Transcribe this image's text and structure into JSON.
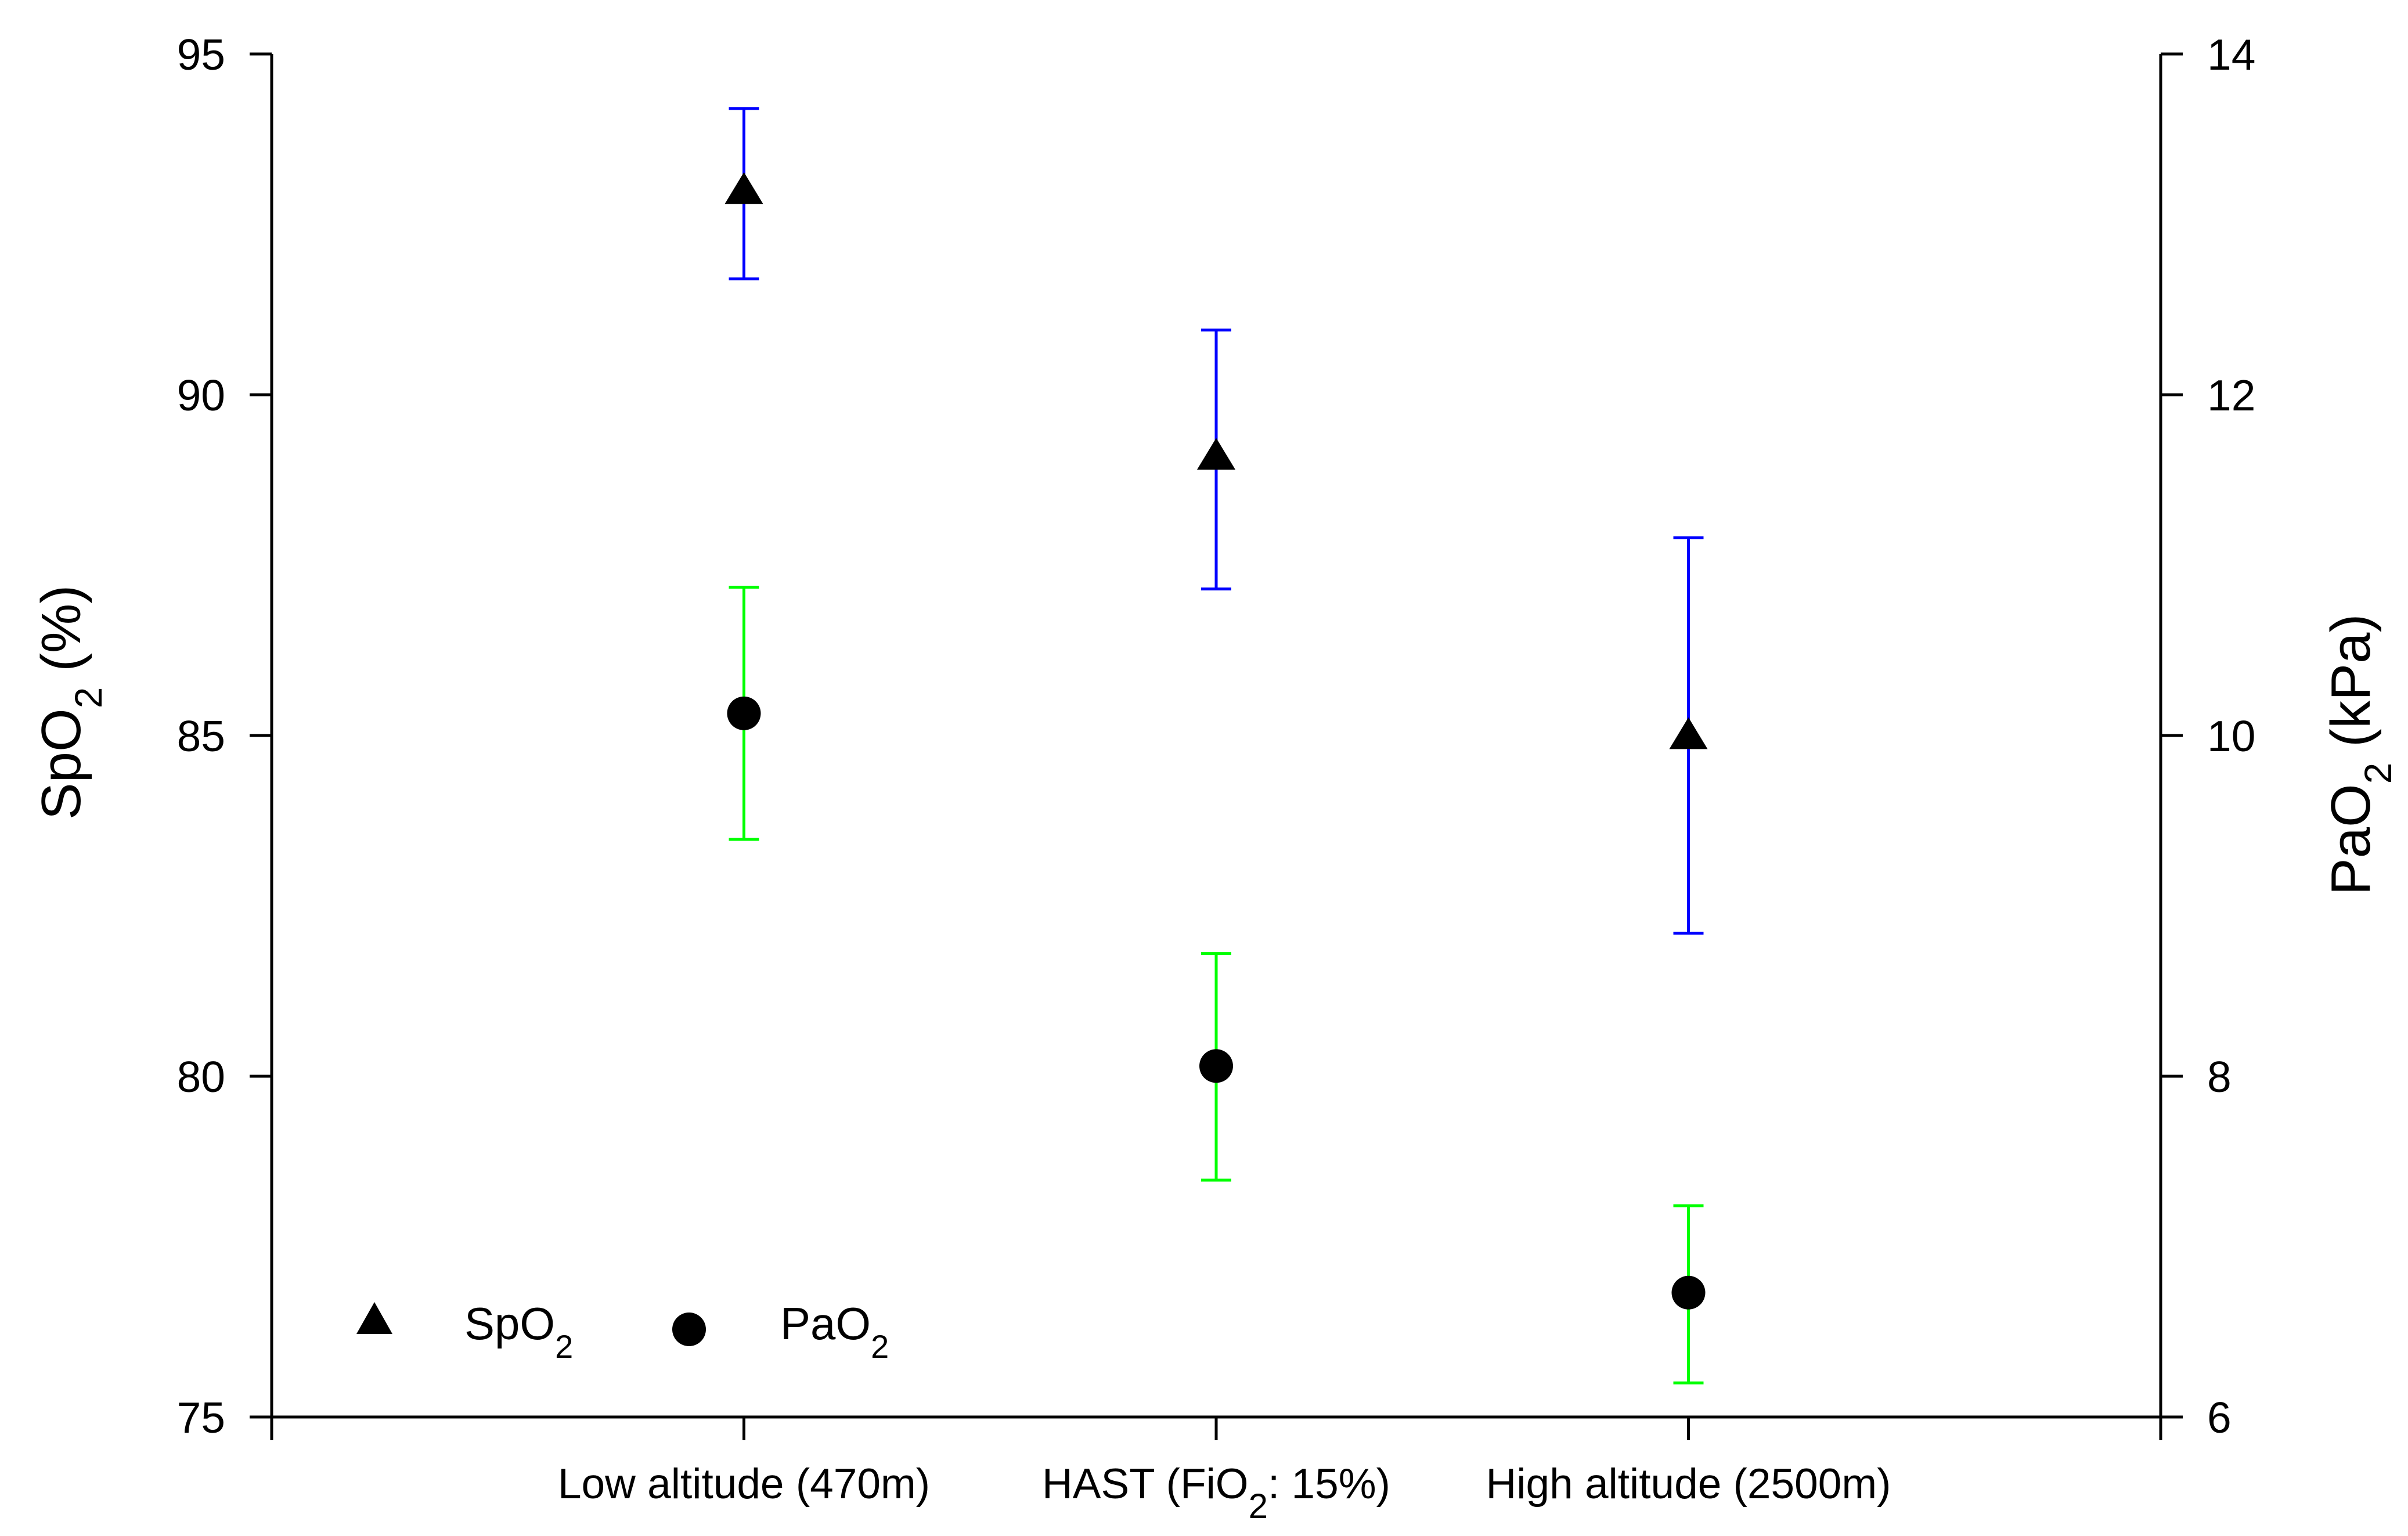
{
  "chart_data": {
    "type": "scatter",
    "title": "",
    "categories": [
      "Low altitude (470m)",
      "HAST (FiO2: 15%)",
      "High altitude (2500m)"
    ],
    "xlim": [
      -1,
      3
    ],
    "y_left": {
      "label_base": "SpO",
      "label_sub": "2",
      "label_suffix": " (%)",
      "ylim": [
        75,
        95
      ],
      "ticks": [
        75,
        80,
        85,
        90,
        95
      ]
    },
    "y_right": {
      "label_base": "PaO",
      "label_sub": "2",
      "label_suffix": " (kPa)",
      "ylim": [
        6,
        14
      ],
      "ticks": [
        6,
        8,
        10,
        12,
        14
      ]
    },
    "series": [
      {
        "name_base": "SpO",
        "name_sub": "2",
        "axis": "left",
        "marker": "triangle",
        "error_bar_color": "#0000FF",
        "values": [
          93.0,
          89.1,
          85.0
        ],
        "error_upper": [
          94.2,
          90.95,
          87.9
        ],
        "error_lower": [
          91.7,
          87.15,
          82.1
        ]
      },
      {
        "name_base": "PaO",
        "name_sub": "2",
        "axis": "right",
        "marker": "circle",
        "error_bar_color": "#00FF00",
        "values": [
          10.13,
          8.06,
          6.73
        ],
        "error_upper": [
          10.87,
          8.72,
          7.24
        ],
        "error_lower": [
          9.39,
          7.39,
          6.2
        ]
      }
    ],
    "legend": {
      "position": "bottom-left"
    },
    "grid": false
  }
}
